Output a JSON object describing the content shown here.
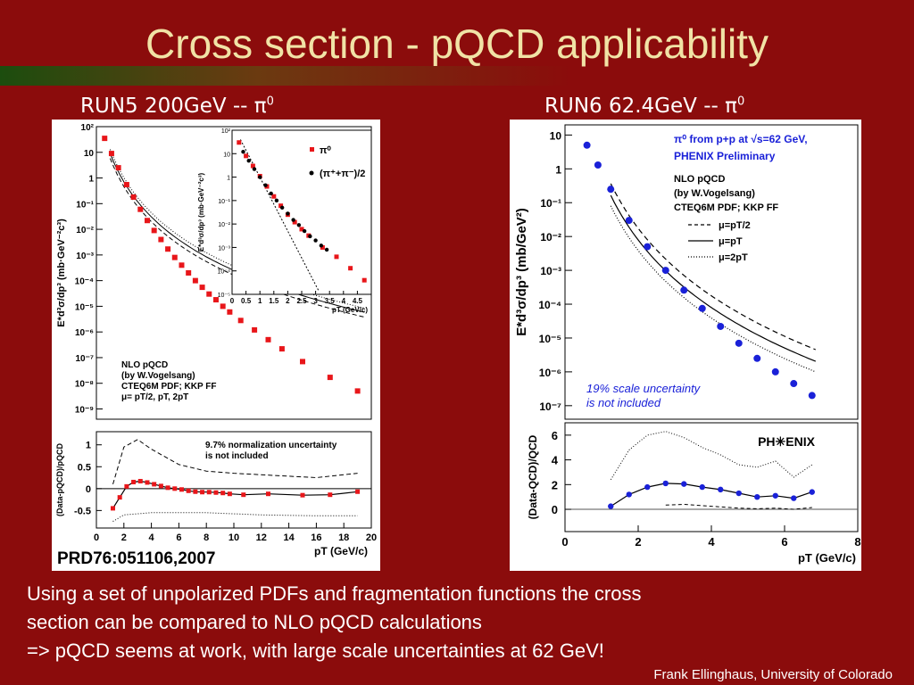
{
  "slide": {
    "title": "Cross section - pQCD applicability",
    "left_header": "RUN5  200GeV -- π",
    "left_header_sup": "0",
    "right_header": "RUN6  62.4GeV -- π",
    "right_header_sup": "0",
    "citation": "PRD76:051106,2007",
    "body_lines": [
      "Using a set of unpolarized PDFs and fragmentation functions the cross",
      "section can be compared to NLO pQCD calculations",
      "=> pQCD seems at work, with large scale uncertainties at 62 GeV!"
    ],
    "credit": "Frank Ellinghaus, University of Colorado"
  },
  "chart_data": [
    {
      "type": "scatter",
      "ylabel": "E*d³σ/dp³ (mb·GeV⁻²c³)",
      "log_y": true,
      "xlim": [
        0,
        20
      ],
      "ylim_exp": [
        -9.4,
        2
      ],
      "y_tick_exps": [
        2,
        1,
        0,
        -1,
        -2,
        -3,
        -4,
        -5,
        -6,
        -7,
        -8,
        -9
      ],
      "series": [
        {
          "x": [
            0.6,
            1.1,
            1.6,
            2.2,
            2.7,
            3.2,
            3.7,
            4.2,
            4.7,
            5.2,
            5.7,
            6.2,
            6.7,
            7.2,
            7.7,
            8.2,
            8.7,
            9.2,
            9.7,
            10.5,
            11.5,
            12.5,
            13.5,
            15,
            17,
            19
          ],
          "y": [
            35,
            9,
            2.5,
            0.55,
            0.18,
            0.06,
            0.022,
            0.009,
            0.004,
            0.0017,
            0.0008,
            0.0004,
            0.0002,
            0.0001,
            5.5e-05,
            3e-05,
            1.8e-05,
            1e-05,
            6e-06,
            2.8e-06,
            1.2e-06,
            5e-07,
            2.2e-07,
            7e-08,
            1.7e-08,
            5e-09
          ]
        }
      ],
      "legend": [
        "NLO pQCD",
        "(by W.Vogelsang)",
        "CTEQ6M PDF; KKP FF",
        "μ= pT/2, pT, 2pT"
      ]
    },
    {
      "type": "scatter",
      "ylabel": "E*d³σ/dp³ (mb·GeV⁻²c³)",
      "xlabel": "pT (GeV/c)",
      "log_y": true,
      "xlim": [
        0,
        5
      ],
      "ylim_exp": [
        -5,
        2
      ],
      "x_ticks": [
        "0",
        "0.5",
        "1",
        "1.5",
        "2",
        "2.5",
        "3",
        "3.5",
        "4",
        "4.5"
      ],
      "y_tick_exps": [
        2,
        1,
        0,
        -1,
        -2,
        -3,
        -4,
        -5
      ],
      "series": [
        {
          "name": "π⁰",
          "x": [
            0.25,
            0.5,
            0.75,
            1,
            1.25,
            1.5,
            1.75,
            2,
            2.25,
            2.5,
            2.75,
            3.25,
            3.75,
            4.25,
            4.75
          ],
          "y": [
            30,
            8,
            3,
            1.1,
            0.4,
            0.15,
            0.06,
            0.025,
            0.012,
            0.006,
            0.0032,
            0.001,
            0.0004,
            0.00013,
            4e-05
          ]
        },
        {
          "name": "(π⁺+π⁻)/2",
          "x": [
            0.4,
            0.6,
            0.8,
            1,
            1.2,
            1.4,
            1.6,
            1.8,
            2,
            2.2,
            2.4,
            2.6,
            2.8,
            3,
            3.2,
            3.4
          ],
          "y": [
            12,
            5,
            2.2,
            1,
            0.45,
            0.2,
            0.1,
            0.05,
            0.028,
            0.015,
            0.009,
            0.005,
            0.003,
            0.002,
            0.0012,
            0.0008
          ]
        }
      ]
    },
    {
      "type": "scatter",
      "ylabel": "(Data-pQCD)/pQCD",
      "xlabel": "pT (GeV/c)",
      "xlim": [
        0,
        20
      ],
      "ylim": [
        -0.9,
        1.3
      ],
      "x_ticks": [
        "0",
        "2",
        "4",
        "6",
        "8",
        "10",
        "12",
        "14",
        "16",
        "18",
        "20"
      ],
      "y_ticks": [
        "1",
        "0.5",
        "0",
        "-0.5"
      ],
      "annotation": [
        "9.7% normalization uncertainty",
        "is not included"
      ],
      "series": [
        {
          "x": [
            1.2,
            1.7,
            2.2,
            2.7,
            3.2,
            3.7,
            4.2,
            4.7,
            5.2,
            5.7,
            6.2,
            6.7,
            7.2,
            7.7,
            8.2,
            8.7,
            9.2,
            9.7,
            10.7,
            12.5,
            15,
            17,
            19
          ],
          "y": [
            -0.45,
            -0.2,
            0.05,
            0.15,
            0.17,
            0.14,
            0.1,
            0.06,
            0.02,
            0,
            -0.02,
            -0.05,
            -0.07,
            -0.08,
            -0.08,
            -0.09,
            -0.1,
            -0.12,
            -0.14,
            -0.12,
            -0.15,
            -0.14,
            -0.07
          ]
        }
      ]
    },
    {
      "type": "scatter",
      "ylabel": "E*d³σ/dp³ (mb/GeV²)",
      "log_y": true,
      "xlim": [
        0,
        8
      ],
      "ylim_exp": [
        -7.4,
        1.3
      ],
      "y_tick_exps": [
        1,
        0,
        -1,
        -2,
        -3,
        -4,
        -5,
        -6,
        -7
      ],
      "series": [
        {
          "name": "π⁰ from p+p at √s=62 GeV, PHENIX Preliminary",
          "x": [
            0.6,
            0.9,
            1.25,
            1.75,
            2.25,
            2.75,
            3.25,
            3.75,
            4.25,
            4.75,
            5.25,
            5.75,
            6.25,
            6.75
          ],
          "y": [
            5,
            1.3,
            0.25,
            0.03,
            0.005,
            0.001,
            0.00026,
            7.5e-05,
            2.2e-05,
            7e-06,
            2.5e-06,
            1e-06,
            4.5e-07,
            2e-07
          ]
        }
      ],
      "legend": [
        "NLO pQCD",
        "(by W.Vogelsang)",
        "CTEQ6M PDF; KKP FF",
        "μ=pT/2",
        "μ=pT",
        "μ=2pT"
      ],
      "annotation": [
        "19% scale uncertainty",
        "is not included"
      ]
    },
    {
      "type": "scatter",
      "ylabel": "(Data-QCD)/QCD",
      "xlabel": "pT (GeV/c)",
      "xlim": [
        0,
        8
      ],
      "ylim": [
        -1.8,
        7
      ],
      "x_ticks": [
        "0",
        "2",
        "4",
        "6",
        "8"
      ],
      "y_ticks": [
        "6",
        "4",
        "2",
        "0"
      ],
      "logo": "PH✳ENIX",
      "series": [
        {
          "x": [
            1.25,
            1.75,
            2.25,
            2.75,
            3.25,
            3.75,
            4.25,
            4.75,
            5.25,
            5.75,
            6.25,
            6.75
          ],
          "y": [
            0.25,
            1.2,
            1.8,
            2.1,
            2.05,
            1.8,
            1.6,
            1.3,
            1.0,
            1.1,
            0.9,
            1.4
          ]
        }
      ]
    }
  ]
}
